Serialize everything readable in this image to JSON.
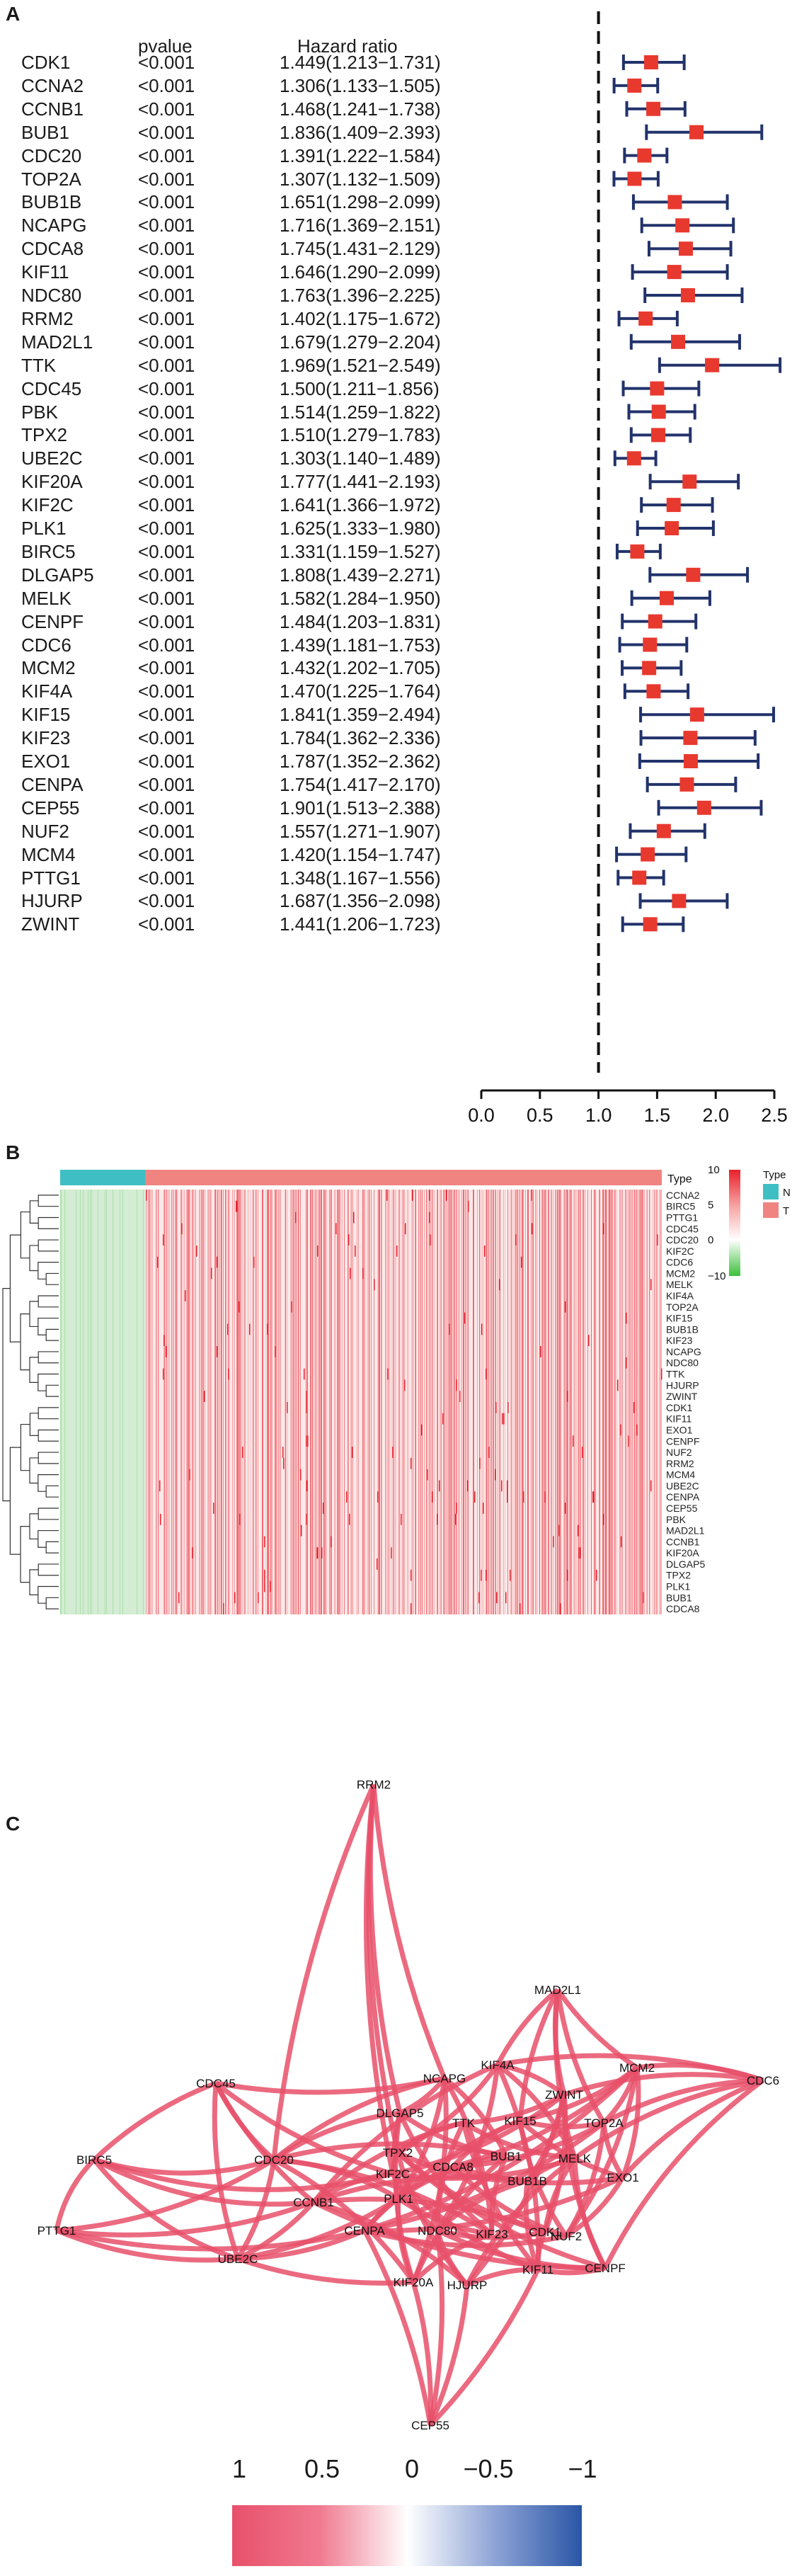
{
  "panels": {
    "a": "A",
    "b": "B",
    "c": "C"
  },
  "forest": {
    "header_pvalue": "pvalue",
    "header_hr": "Hazard ratio",
    "rows": [
      {
        "gene": "CDK1",
        "pvalue": "<0.001",
        "hr_text": "1.449(1.213−1.731)",
        "hr": 1.449,
        "lo": 1.213,
        "hi": 1.731
      },
      {
        "gene": "CCNA2",
        "pvalue": "<0.001",
        "hr_text": "1.306(1.133−1.505)",
        "hr": 1.306,
        "lo": 1.133,
        "hi": 1.505
      },
      {
        "gene": "CCNB1",
        "pvalue": "<0.001",
        "hr_text": "1.468(1.241−1.738)",
        "hr": 1.468,
        "lo": 1.241,
        "hi": 1.738
      },
      {
        "gene": "BUB1",
        "pvalue": "<0.001",
        "hr_text": "1.836(1.409−2.393)",
        "hr": 1.836,
        "lo": 1.409,
        "hi": 2.393
      },
      {
        "gene": "CDC20",
        "pvalue": "<0.001",
        "hr_text": "1.391(1.222−1.584)",
        "hr": 1.391,
        "lo": 1.222,
        "hi": 1.584
      },
      {
        "gene": "TOP2A",
        "pvalue": "<0.001",
        "hr_text": "1.307(1.132−1.509)",
        "hr": 1.307,
        "lo": 1.132,
        "hi": 1.509
      },
      {
        "gene": "BUB1B",
        "pvalue": "<0.001",
        "hr_text": "1.651(1.298−2.099)",
        "hr": 1.651,
        "lo": 1.298,
        "hi": 2.099
      },
      {
        "gene": "NCAPG",
        "pvalue": "<0.001",
        "hr_text": "1.716(1.369−2.151)",
        "hr": 1.716,
        "lo": 1.369,
        "hi": 2.151
      },
      {
        "gene": "CDCA8",
        "pvalue": "<0.001",
        "hr_text": "1.745(1.431−2.129)",
        "hr": 1.745,
        "lo": 1.431,
        "hi": 2.129
      },
      {
        "gene": "KIF11",
        "pvalue": "<0.001",
        "hr_text": "1.646(1.290−2.099)",
        "hr": 1.646,
        "lo": 1.29,
        "hi": 2.099
      },
      {
        "gene": "NDC80",
        "pvalue": "<0.001",
        "hr_text": "1.763(1.396−2.225)",
        "hr": 1.763,
        "lo": 1.396,
        "hi": 2.225
      },
      {
        "gene": "RRM2",
        "pvalue": "<0.001",
        "hr_text": "1.402(1.175−1.672)",
        "hr": 1.402,
        "lo": 1.175,
        "hi": 1.672
      },
      {
        "gene": "MAD2L1",
        "pvalue": "<0.001",
        "hr_text": "1.679(1.279−2.204)",
        "hr": 1.679,
        "lo": 1.279,
        "hi": 2.204
      },
      {
        "gene": "TTK",
        "pvalue": "<0.001",
        "hr_text": "1.969(1.521−2.549)",
        "hr": 1.969,
        "lo": 1.521,
        "hi": 2.549
      },
      {
        "gene": "CDC45",
        "pvalue": "<0.001",
        "hr_text": "1.500(1.211−1.856)",
        "hr": 1.5,
        "lo": 1.211,
        "hi": 1.856
      },
      {
        "gene": "PBK",
        "pvalue": "<0.001",
        "hr_text": "1.514(1.259−1.822)",
        "hr": 1.514,
        "lo": 1.259,
        "hi": 1.822
      },
      {
        "gene": "TPX2",
        "pvalue": "<0.001",
        "hr_text": "1.510(1.279−1.783)",
        "hr": 1.51,
        "lo": 1.279,
        "hi": 1.783
      },
      {
        "gene": "UBE2C",
        "pvalue": "<0.001",
        "hr_text": "1.303(1.140−1.489)",
        "hr": 1.303,
        "lo": 1.14,
        "hi": 1.489
      },
      {
        "gene": "KIF20A",
        "pvalue": "<0.001",
        "hr_text": "1.777(1.441−2.193)",
        "hr": 1.777,
        "lo": 1.441,
        "hi": 2.193
      },
      {
        "gene": "KIF2C",
        "pvalue": "<0.001",
        "hr_text": "1.641(1.366−1.972)",
        "hr": 1.641,
        "lo": 1.366,
        "hi": 1.972
      },
      {
        "gene": "PLK1",
        "pvalue": "<0.001",
        "hr_text": "1.625(1.333−1.980)",
        "hr": 1.625,
        "lo": 1.333,
        "hi": 1.98
      },
      {
        "gene": "BIRC5",
        "pvalue": "<0.001",
        "hr_text": "1.331(1.159−1.527)",
        "hr": 1.331,
        "lo": 1.159,
        "hi": 1.527
      },
      {
        "gene": "DLGAP5",
        "pvalue": "<0.001",
        "hr_text": "1.808(1.439−2.271)",
        "hr": 1.808,
        "lo": 1.439,
        "hi": 2.271
      },
      {
        "gene": "MELK",
        "pvalue": "<0.001",
        "hr_text": "1.582(1.284−1.950)",
        "hr": 1.582,
        "lo": 1.284,
        "hi": 1.95
      },
      {
        "gene": "CENPF",
        "pvalue": "<0.001",
        "hr_text": "1.484(1.203−1.831)",
        "hr": 1.484,
        "lo": 1.203,
        "hi": 1.831
      },
      {
        "gene": "CDC6",
        "pvalue": "<0.001",
        "hr_text": "1.439(1.181−1.753)",
        "hr": 1.439,
        "lo": 1.181,
        "hi": 1.753
      },
      {
        "gene": "MCM2",
        "pvalue": "<0.001",
        "hr_text": "1.432(1.202−1.705)",
        "hr": 1.432,
        "lo": 1.202,
        "hi": 1.705
      },
      {
        "gene": "KIF4A",
        "pvalue": "<0.001",
        "hr_text": "1.470(1.225−1.764)",
        "hr": 1.47,
        "lo": 1.225,
        "hi": 1.764
      },
      {
        "gene": "KIF15",
        "pvalue": "<0.001",
        "hr_text": "1.841(1.359−2.494)",
        "hr": 1.841,
        "lo": 1.359,
        "hi": 2.494
      },
      {
        "gene": "KIF23",
        "pvalue": "<0.001",
        "hr_text": "1.784(1.362−2.336)",
        "hr": 1.784,
        "lo": 1.362,
        "hi": 2.336
      },
      {
        "gene": "EXO1",
        "pvalue": "<0.001",
        "hr_text": "1.787(1.352−2.362)",
        "hr": 1.787,
        "lo": 1.352,
        "hi": 2.362
      },
      {
        "gene": "CENPA",
        "pvalue": "<0.001",
        "hr_text": "1.754(1.417−2.170)",
        "hr": 1.754,
        "lo": 1.417,
        "hi": 2.17
      },
      {
        "gene": "CEP55",
        "pvalue": "<0.001",
        "hr_text": "1.901(1.513−2.388)",
        "hr": 1.901,
        "lo": 1.513,
        "hi": 2.388
      },
      {
        "gene": "NUF2",
        "pvalue": "<0.001",
        "hr_text": "1.557(1.271−1.907)",
        "hr": 1.557,
        "lo": 1.271,
        "hi": 1.907
      },
      {
        "gene": "MCM4",
        "pvalue": "<0.001",
        "hr_text": "1.420(1.154−1.747)",
        "hr": 1.42,
        "lo": 1.154,
        "hi": 1.747
      },
      {
        "gene": "PTTG1",
        "pvalue": "<0.001",
        "hr_text": "1.348(1.167−1.556)",
        "hr": 1.348,
        "lo": 1.167,
        "hi": 1.556
      },
      {
        "gene": "HJURP",
        "pvalue": "<0.001",
        "hr_text": "1.687(1.356−2.098)",
        "hr": 1.687,
        "lo": 1.356,
        "hi": 2.098
      },
      {
        "gene": "ZWINT",
        "pvalue": "<0.001",
        "hr_text": "1.441(1.206−1.723)",
        "hr": 1.441,
        "lo": 1.206,
        "hi": 1.723
      }
    ],
    "xaxis": {
      "label": "Hazard ratio",
      "ticks": [
        "0.0",
        "0.5",
        "1.0",
        "1.5",
        "2.0",
        "2.5"
      ],
      "range": [
        0,
        2.5
      ],
      "reference": 1.0
    },
    "colors": {
      "box": "#e8392f",
      "ci": "#22336b"
    }
  },
  "heatmap": {
    "annotation_label": "Type",
    "legend_title": "Type",
    "legend_groups": [
      "N",
      "T"
    ],
    "scale_ticks": [
      "10",
      "5",
      "0",
      "−10"
    ],
    "genes": [
      "CCNA2",
      "BIRC5",
      "PTTG1",
      "CDC45",
      "CDC20",
      "KIF2C",
      "CDC6",
      "MCM2",
      "MELK",
      "KIF4A",
      "TOP2A",
      "KIF15",
      "BUB1B",
      "KIF23",
      "NCAPG",
      "NDC80",
      "TTK",
      "HJURP",
      "ZWINT",
      "CDK1",
      "KIF11",
      "EXO1",
      "CENPF",
      "NUF2",
      "RRM2",
      "MCM4",
      "UBE2C",
      "CENPA",
      "CEP55",
      "PBK",
      "MAD2L1",
      "CCNB1",
      "KIF20A",
      "DLGAP5",
      "TPX2",
      "PLK1",
      "BUB1",
      "CDCA8"
    ],
    "colors": {
      "N": "#3fbfc4",
      "T": "#f08480",
      "high": "#e8202c",
      "mid": "#ffffff",
      "low": "#3bbf3b"
    }
  },
  "network": {
    "nodes": [
      "RRM2",
      "MAD2L1",
      "KIF4A",
      "NCAPG",
      "ZWINT",
      "MCM2",
      "CDC6",
      "CDC45",
      "DLGAP5",
      "TTK",
      "KIF15",
      "TOP2A",
      "TPX2",
      "BUB1",
      "BIRC5",
      "CDC20",
      "KIF2C",
      "CDCA8",
      "MELK",
      "EXO1",
      "PLK1",
      "BUB1B",
      "CCNB1",
      "PTTG1",
      "CENPA",
      "NDC80",
      "KIF23",
      "CDK1",
      "NUF2",
      "UBE2C",
      "KIF11",
      "KIF20A",
      "HJURP",
      "CENPF",
      "CEP55"
    ],
    "legend_ticks": [
      "1",
      "0.5",
      "0",
      "−0.5",
      "−1"
    ],
    "colors": {
      "positive": "#e8506a",
      "negative": "#2a56a6"
    }
  }
}
